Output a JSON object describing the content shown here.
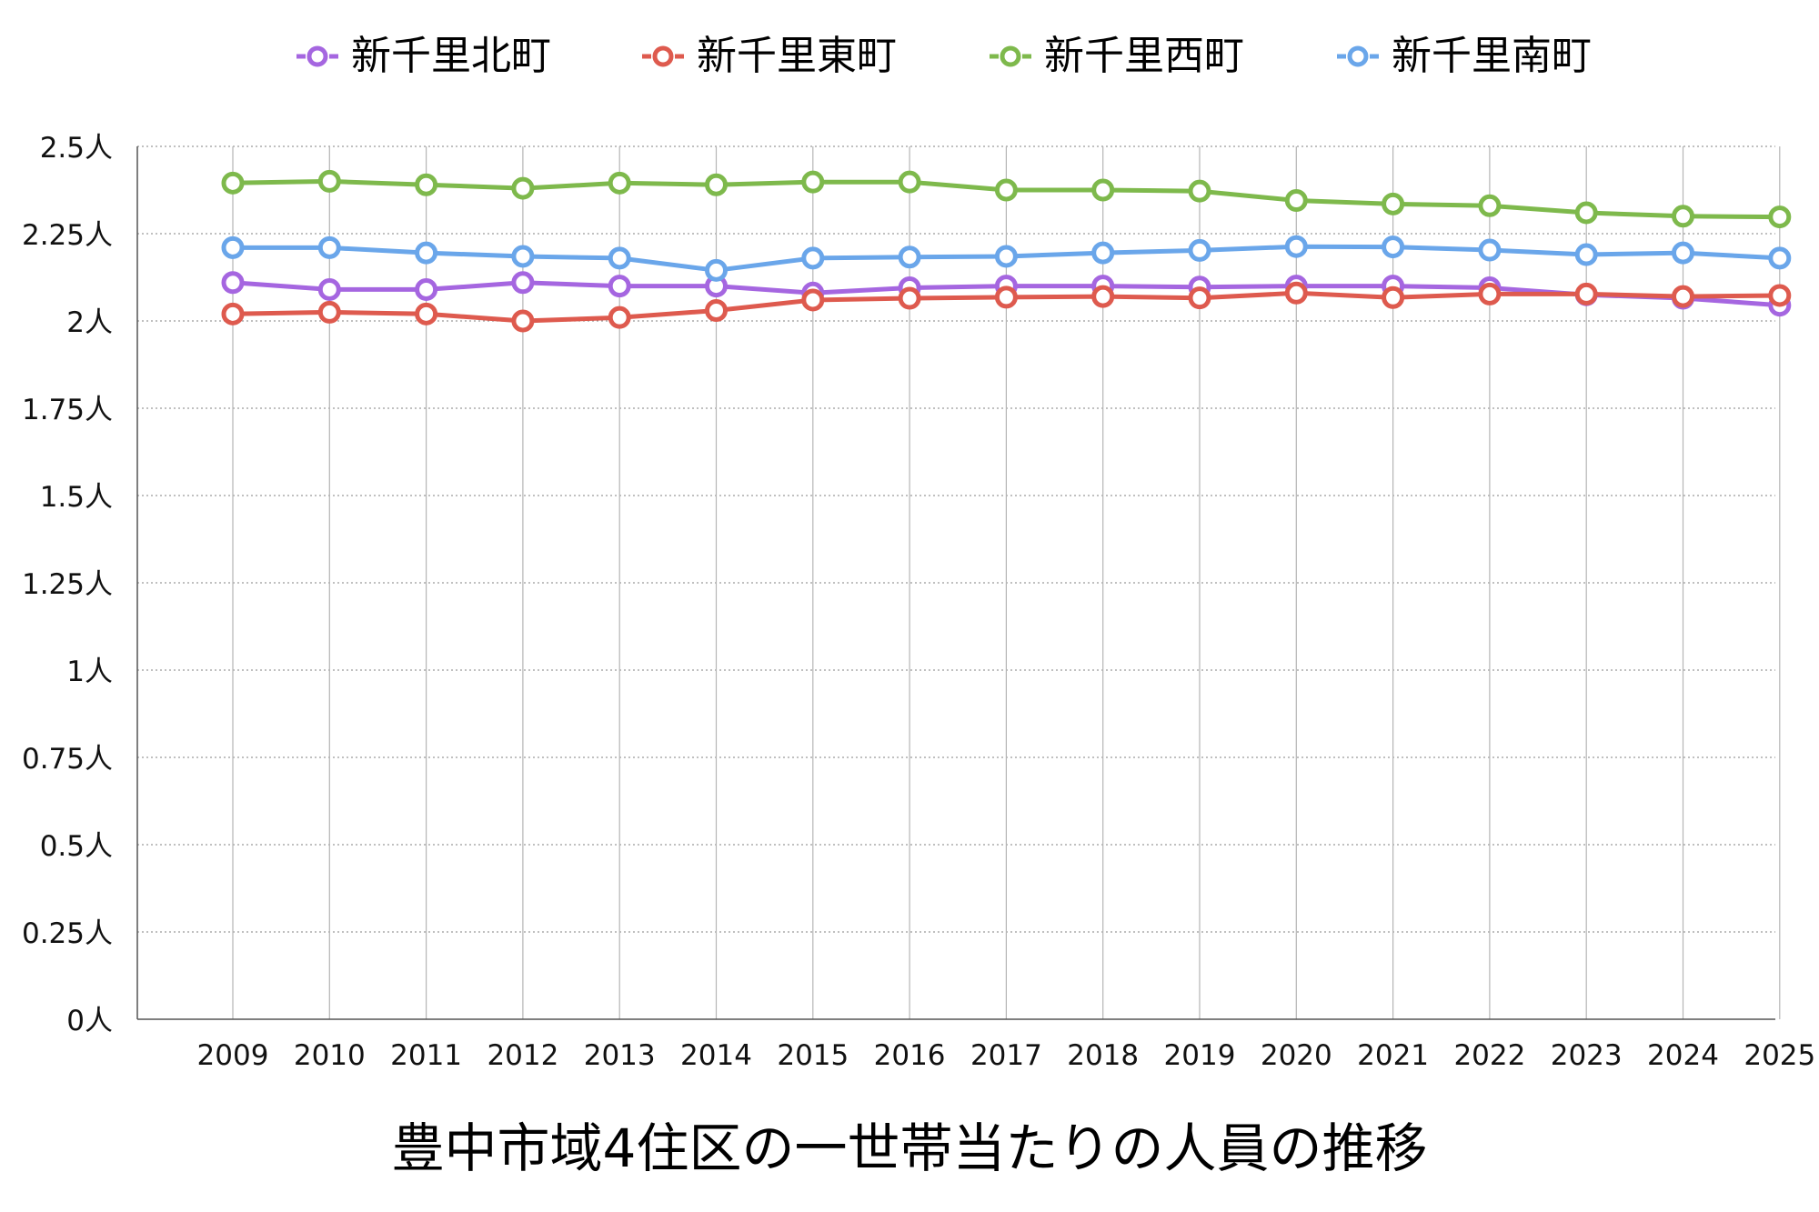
{
  "chart_data": {
    "type": "line",
    "title": "豊中市域4住区の一世帯当たりの人員の推移",
    "xlabel": "",
    "ylabel": "",
    "x": [
      2009,
      2010,
      2011,
      2012,
      2013,
      2014,
      2015,
      2016,
      2017,
      2018,
      2019,
      2020,
      2021,
      2022,
      2023,
      2024,
      2025
    ],
    "ylim": [
      0,
      2.5
    ],
    "y_ticks": [
      0,
      0.25,
      0.5,
      0.75,
      1,
      1.25,
      1.5,
      1.75,
      2,
      2.25,
      2.5
    ],
    "y_tick_labels": [
      "0人",
      "0.25人",
      "0.5人",
      "0.75人",
      "1人",
      "1.25人",
      "1.5人",
      "1.75人",
      "2人",
      "2.25人",
      "2.5人"
    ],
    "grid": true,
    "legend_position": "top",
    "series": [
      {
        "name": "新千里北町",
        "color": "#a566e0",
        "values": [
          2.11,
          2.09,
          2.09,
          2.11,
          2.1,
          2.1,
          2.08,
          2.095,
          2.1,
          2.1,
          2.097,
          2.1,
          2.1,
          2.095,
          2.075,
          2.065,
          2.045
        ]
      },
      {
        "name": "新千里東町",
        "color": "#de5a4e",
        "values": [
          2.02,
          2.025,
          2.02,
          2.0,
          2.01,
          2.03,
          2.06,
          2.065,
          2.068,
          2.07,
          2.066,
          2.08,
          2.067,
          2.077,
          2.077,
          2.07,
          2.073
        ]
      },
      {
        "name": "新千里西町",
        "color": "#7eb94c",
        "values": [
          2.395,
          2.4,
          2.39,
          2.38,
          2.395,
          2.39,
          2.398,
          2.398,
          2.375,
          2.375,
          2.372,
          2.345,
          2.335,
          2.33,
          2.31,
          2.3,
          2.298
        ]
      },
      {
        "name": "新千里南町",
        "color": "#6aa6ea",
        "values": [
          2.21,
          2.21,
          2.195,
          2.185,
          2.18,
          2.145,
          2.18,
          2.183,
          2.185,
          2.195,
          2.202,
          2.213,
          2.212,
          2.203,
          2.19,
          2.195,
          2.18
        ]
      }
    ]
  }
}
